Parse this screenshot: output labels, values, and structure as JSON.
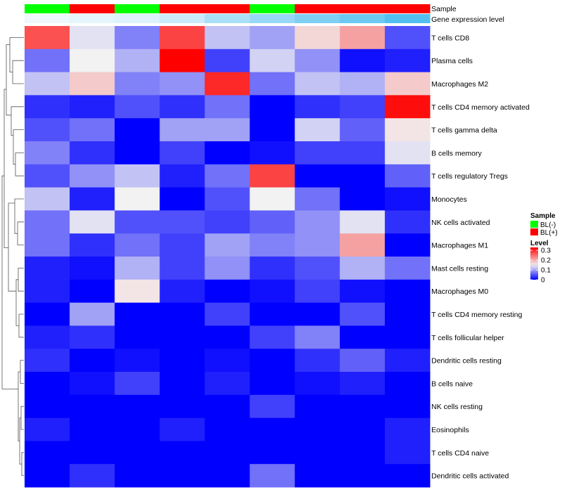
{
  "chart_data": {
    "type": "heatmap",
    "annotation_labels": {
      "sample": "Sample",
      "expression": "Gene expression level"
    },
    "sample_groups": [
      "BL(-)",
      "BL(+)",
      "BL(-)",
      "BL(+)",
      "BL(+)",
      "BL(-)",
      "BL(+)",
      "BL(+)",
      "BL(+)"
    ],
    "expression_level": [
      0.02,
      0.03,
      0.04,
      0.06,
      0.1,
      0.12,
      0.15,
      0.17,
      0.2
    ],
    "rows": [
      "T cells CD8",
      "Plasma cells",
      "Macrophages M2",
      "T cells CD4 memory activated",
      "T cells gamma delta",
      "B cells memory",
      "T cells regulatory  Tregs",
      "Monocytes",
      "NK cells activated",
      "Macrophages M1",
      "Mast cells resting",
      "Macrophages M0",
      "T cells CD4 memory resting",
      "T cells follicular helper",
      "Dendritic cells resting",
      "B cells naive",
      "NK cells resting",
      "Eosinophils",
      "T cells CD4 naive",
      "Dendritic cells activated"
    ],
    "values": [
      [
        0.27,
        0.14,
        0.08,
        0.28,
        0.12,
        0.1,
        0.17,
        0.21,
        0.05
      ],
      [
        0.07,
        0.15,
        0.11,
        0.33,
        0.04,
        0.13,
        0.09,
        0.01,
        0.02
      ],
      [
        0.12,
        0.18,
        0.08,
        0.09,
        0.3,
        0.07,
        0.12,
        0.11,
        0.18
      ],
      [
        0.03,
        0.02,
        0.05,
        0.03,
        0.07,
        0.0,
        0.03,
        0.04,
        0.32
      ],
      [
        0.05,
        0.07,
        0.0,
        0.1,
        0.1,
        0.0,
        0.13,
        0.06,
        0.16
      ],
      [
        0.08,
        0.03,
        0.0,
        0.04,
        0.0,
        0.01,
        0.04,
        0.04,
        0.14
      ],
      [
        0.05,
        0.09,
        0.12,
        0.02,
        0.07,
        0.28,
        0.0,
        0.0,
        0.06
      ],
      [
        0.12,
        0.02,
        0.15,
        0.0,
        0.05,
        0.15,
        0.07,
        0.0,
        0.01
      ],
      [
        0.07,
        0.14,
        0.05,
        0.05,
        0.04,
        0.06,
        0.09,
        0.14,
        0.03
      ],
      [
        0.07,
        0.03,
        0.07,
        0.04,
        0.1,
        0.08,
        0.09,
        0.21,
        0.0
      ],
      [
        0.02,
        0.01,
        0.11,
        0.04,
        0.09,
        0.03,
        0.05,
        0.11,
        0.07
      ],
      [
        0.02,
        0.0,
        0.16,
        0.02,
        0.0,
        0.01,
        0.04,
        0.01,
        0.0
      ],
      [
        0.0,
        0.1,
        0.0,
        0.0,
        0.04,
        0.0,
        0.0,
        0.05,
        0.0
      ],
      [
        0.02,
        0.03,
        0.0,
        0.0,
        0.0,
        0.04,
        0.08,
        0.0,
        0.0
      ],
      [
        0.03,
        0.0,
        0.01,
        0.0,
        0.01,
        0.0,
        0.03,
        0.06,
        0.02
      ],
      [
        0.0,
        0.01,
        0.04,
        0.0,
        0.02,
        0.0,
        0.01,
        0.02,
        0.0
      ],
      [
        0.0,
        0.0,
        0.0,
        0.0,
        0.0,
        0.04,
        0.0,
        0.0,
        0.0
      ],
      [
        0.02,
        0.0,
        0.0,
        0.02,
        0.0,
        0.0,
        0.0,
        0.0,
        0.02
      ],
      [
        0.0,
        0.0,
        0.0,
        0.0,
        0.0,
        0.0,
        0.0,
        0.0,
        0.02
      ],
      [
        0.0,
        0.03,
        0.0,
        0.0,
        0.0,
        0.07,
        0.0,
        0.0,
        0.0
      ]
    ],
    "color_scale": {
      "min": 0,
      "mid": 0.15,
      "max": 0.33,
      "low_color": "#0000ff",
      "mid_color": "#f2f2f2",
      "high_color": "#ff0000"
    },
    "legend": {
      "sample_title": "Sample",
      "sample_items": [
        {
          "label": "BL(-)",
          "color": "#00ff00"
        },
        {
          "label": "BL(+)",
          "color": "#ff0000"
        }
      ],
      "level_title": "Level",
      "level_ticks": [
        "0.3",
        "0.2",
        "0.1",
        "0"
      ],
      "level_tick_values": [
        0.3,
        0.2,
        0.1,
        0
      ]
    },
    "annotation_colors": {
      "BL(-)": "#00ff00",
      "BL(+)": "#ff0000",
      "expr_low": "#eef8fd",
      "expr_high": "#52bff0"
    }
  }
}
